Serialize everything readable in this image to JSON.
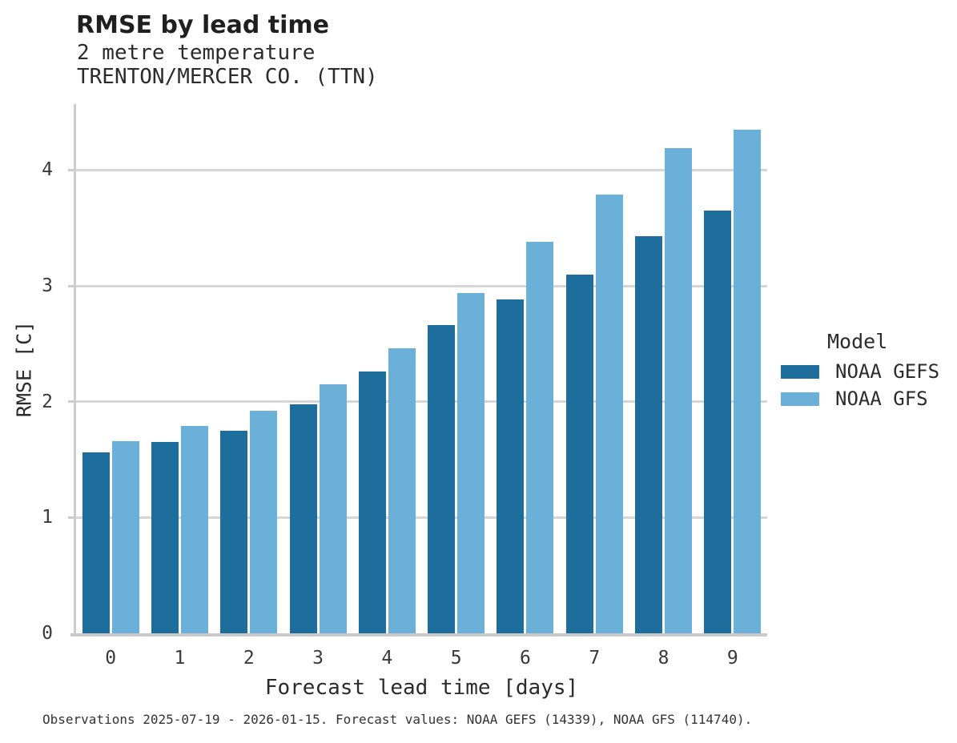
{
  "header": {
    "title": "RMSE by lead time",
    "subtitle_line1": "2 metre temperature",
    "subtitle_line2": "TRENTON/MERCER CO. (TTN)"
  },
  "chart_data": {
    "type": "bar",
    "title": "RMSE by lead time",
    "subtitle": "2 metre temperature",
    "station": "TRENTON/MERCER CO. (TTN)",
    "categories": [
      "0",
      "1",
      "2",
      "3",
      "4",
      "5",
      "6",
      "7",
      "8",
      "9"
    ],
    "series": [
      {
        "name": "NOAA GEFS",
        "color": "#1d6e9d",
        "values": [
          1.56,
          1.65,
          1.75,
          1.98,
          2.26,
          2.66,
          2.88,
          3.1,
          3.43,
          3.65
        ]
      },
      {
        "name": "NOAA GFS",
        "color": "#6bb0d8",
        "values": [
          1.66,
          1.79,
          1.92,
          2.15,
          2.46,
          2.94,
          3.38,
          3.79,
          4.19,
          4.35
        ]
      }
    ],
    "xlabel": "Forecast lead time [days]",
    "ylabel": "RMSE [C]",
    "ylim": [
      0,
      4.57
    ],
    "yticks": [
      0,
      1,
      2,
      3,
      4
    ],
    "grid": true,
    "legend_title": "Model",
    "legend_position": "right",
    "colors": {
      "grid": "#d6d6d6",
      "axis": "#cccccc",
      "text": "#2b2b2b"
    }
  },
  "caption": "Observations 2025-07-19 - 2026-01-15. Forecast values: NOAA GEFS (14339), NOAA GFS (114740)."
}
